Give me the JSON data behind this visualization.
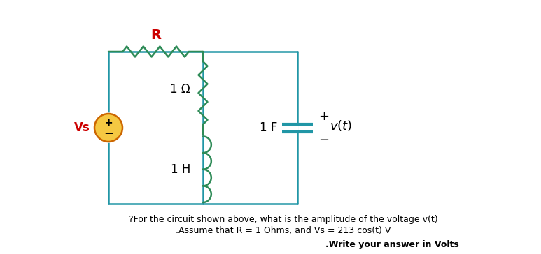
{
  "bg_color": "#ffffff",
  "circuit_color": "#2196A6",
  "R_label_color": "#cc0000",
  "Vs_label_color": "#cc0000",
  "green_color": "#2E8B57",
  "source_fill": "#F5C842",
  "source_edge": "#cc6600",
  "ohm_label": "1 Ω",
  "henry_label": "1 H",
  "farad_label": "1 F",
  "q1": "?For the circuit shown above, what is the amplitude of the voltage v(t)",
  "q2": ".Assume that R = 1 Ohms, and Vs = 213 cos(t) V",
  "q3": ".Write your answer in Volts",
  "figsize": [
    7.73,
    3.64
  ],
  "dpi": 100
}
